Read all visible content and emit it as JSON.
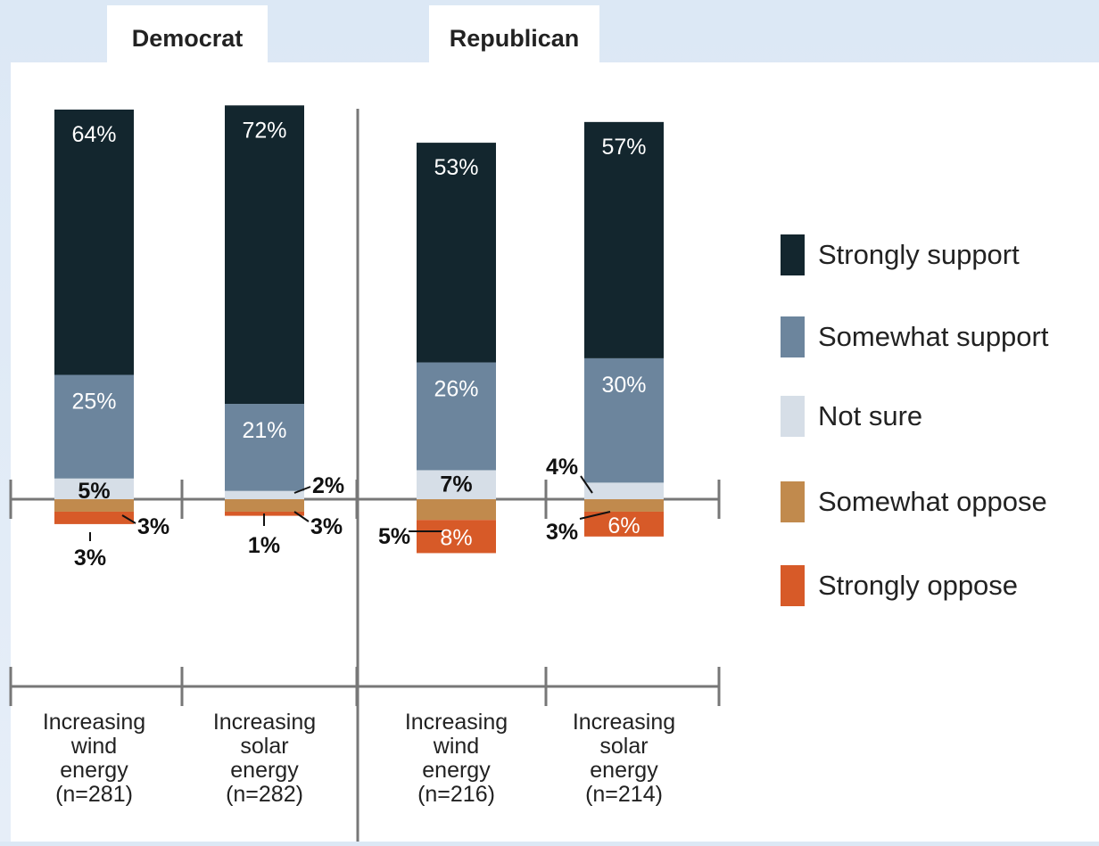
{
  "chart_data": {
    "type": "bar",
    "stacked": "diverging",
    "groups": [
      "Democrat",
      "Republican"
    ],
    "categories": [
      {
        "group": "Democrat",
        "lines": [
          "Increasing",
          "wind",
          "energy",
          "(n=281)"
        ]
      },
      {
        "group": "Democrat",
        "lines": [
          "Increasing",
          "solar",
          "energy",
          "(n=282)"
        ]
      },
      {
        "group": "Republican",
        "lines": [
          "Increasing",
          "wind",
          "energy",
          "(n=216)"
        ]
      },
      {
        "group": "Republican",
        "lines": [
          "Increasing",
          "solar",
          "energy",
          "(n=214)"
        ]
      }
    ],
    "series": [
      {
        "name": "Strongly support",
        "color": "#13262e",
        "direction": "up",
        "values": [
          64,
          72,
          53,
          57
        ],
        "labels": [
          "64%",
          "72%",
          "53%",
          "57%"
        ]
      },
      {
        "name": "Somewhat support",
        "color": "#6c859d",
        "direction": "up",
        "values": [
          25,
          21,
          26,
          30
        ],
        "labels": [
          "25%",
          "21%",
          "26%",
          "30%"
        ]
      },
      {
        "name": "Not sure",
        "color": "#d6dee7",
        "direction": "up",
        "values": [
          5,
          2,
          7,
          4
        ],
        "labels": [
          "5%",
          "2%",
          "7%",
          "4%"
        ]
      },
      {
        "name": "Somewhat oppose",
        "color": "#c18a4d",
        "direction": "down",
        "values": [
          3,
          3,
          5,
          3
        ],
        "labels": [
          "3%",
          "3%",
          "5%",
          "3%"
        ]
      },
      {
        "name": "Strongly oppose",
        "color": "#d75a28",
        "direction": "down",
        "values": [
          3,
          1,
          8,
          6
        ],
        "labels": [
          "3%",
          "1%",
          "8%",
          "6%"
        ]
      }
    ],
    "legend_position": "right",
    "grid": false
  }
}
